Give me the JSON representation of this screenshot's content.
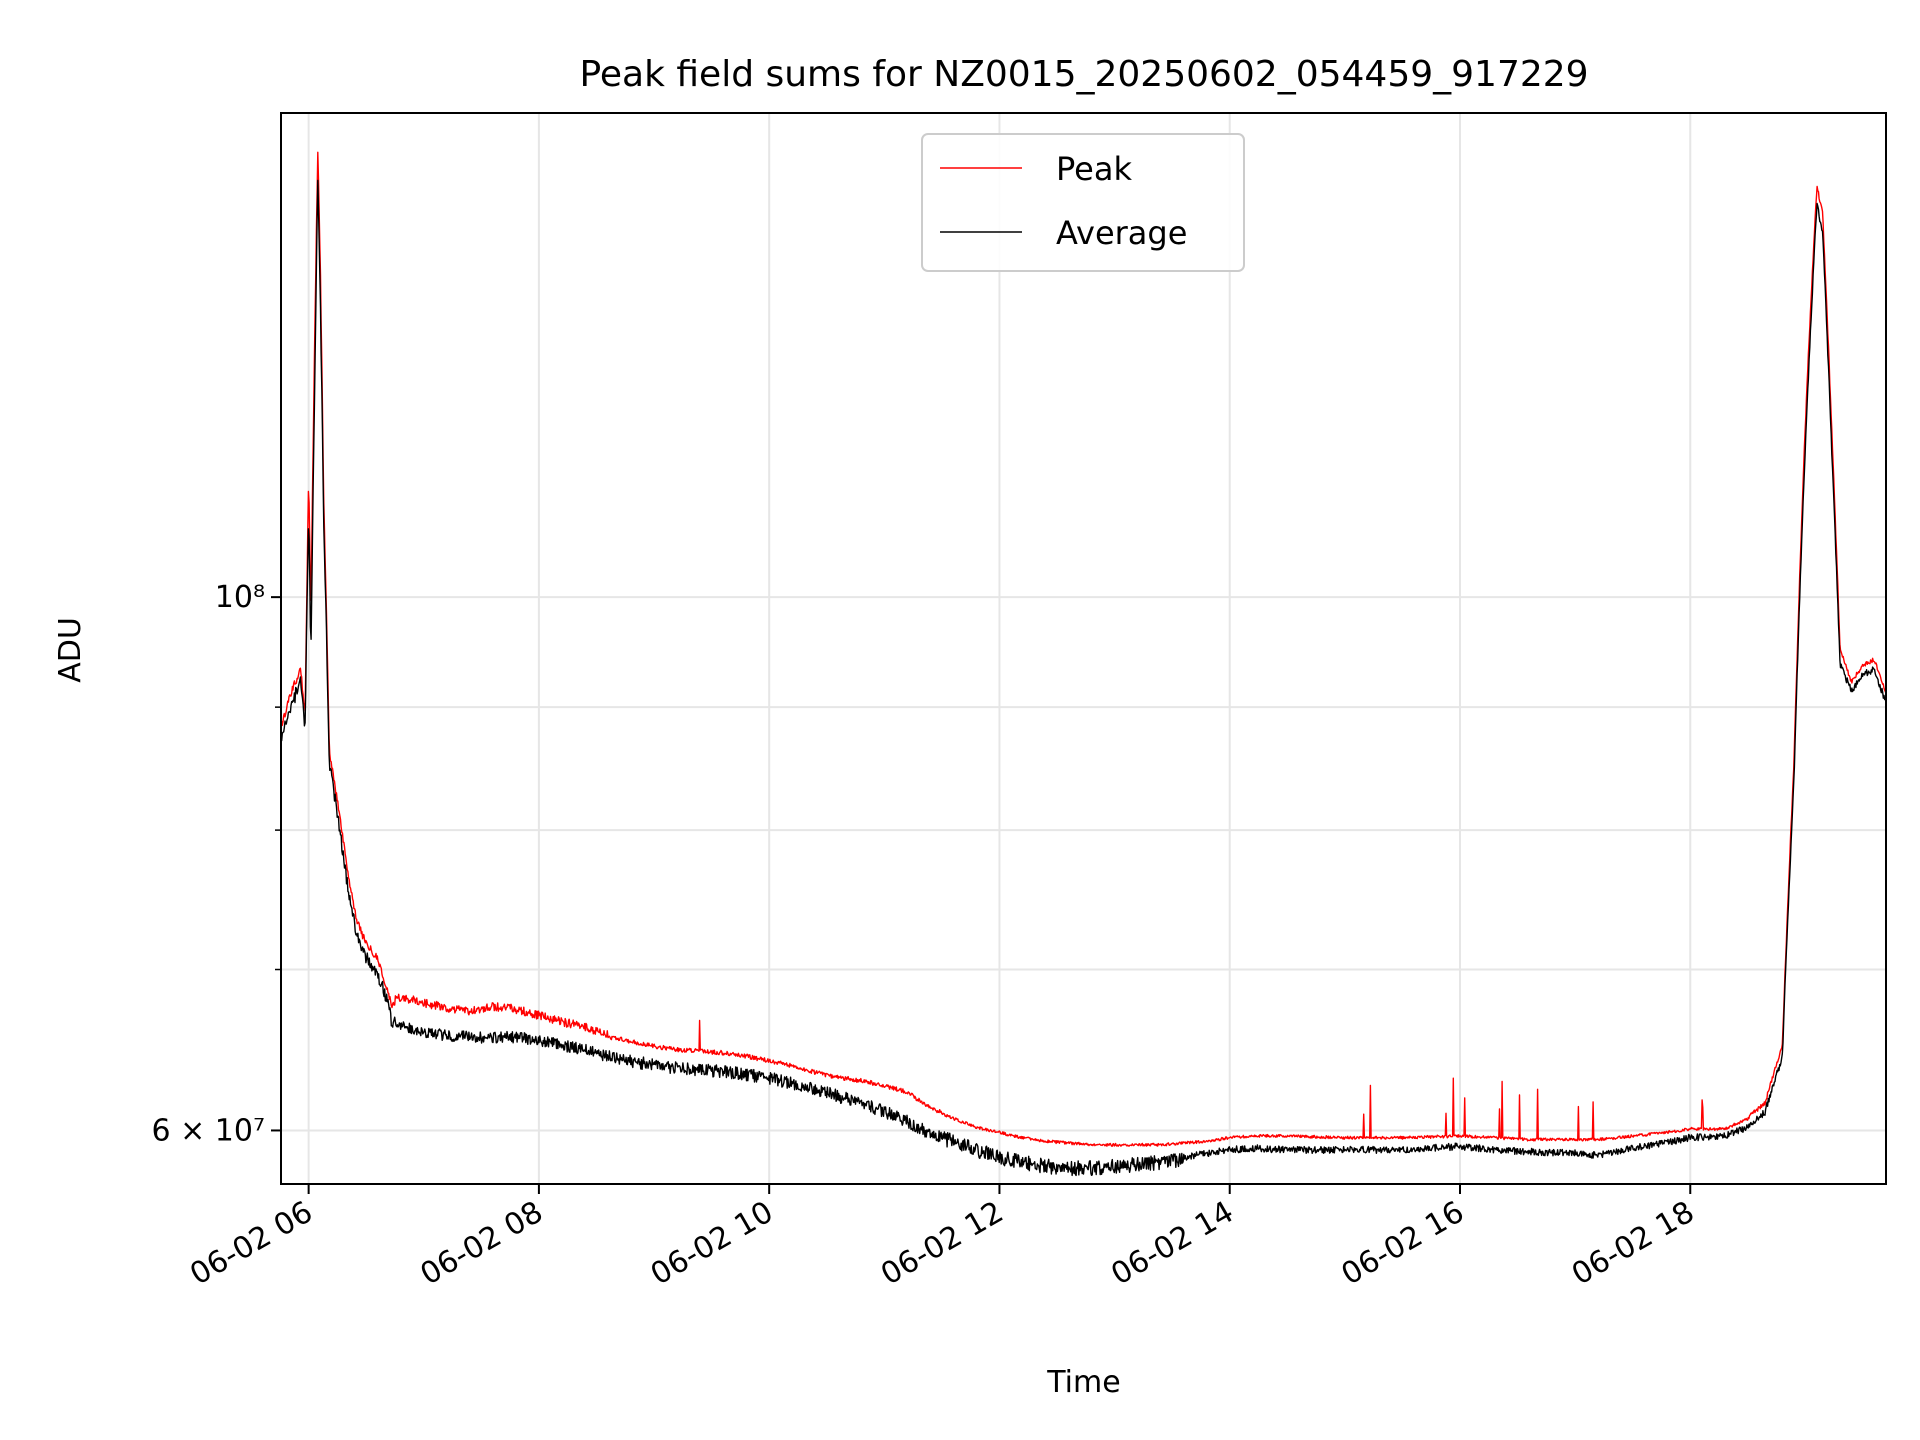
{
  "chart_data": {
    "type": "line",
    "title": "Peak field sums for NZ0015_20250602_054459_917229",
    "xlabel": "Time",
    "ylabel": "ADU",
    "x_type": "time (hours since 00:00 on 06-02)",
    "xlim": [
      5.76,
      19.7
    ],
    "ylim": [
      57000000,
      159000000
    ],
    "yscale": "log",
    "grid": true,
    "legend_position": "upper center",
    "x_ticks": [
      {
        "value": 6,
        "label": "06-02 06"
      },
      {
        "value": 8,
        "label": "06-02 08"
      },
      {
        "value": 10,
        "label": "06-02 10"
      },
      {
        "value": 12,
        "label": "06-02 12"
      },
      {
        "value": 14,
        "label": "06-02 14"
      },
      {
        "value": 16,
        "label": "06-02 16"
      },
      {
        "value": 18,
        "label": "06-02 18"
      }
    ],
    "y_major_ticks": [
      {
        "value": 60000000,
        "label": "6 × 10⁷"
      },
      {
        "value": 100000000,
        "label": "10⁸"
      }
    ],
    "y_minor_ticks": [
      70000000,
      80000000,
      90000000
    ],
    "series": [
      {
        "name": "Peak",
        "color": "#ff0000",
        "x": [
          5.76,
          5.85,
          5.93,
          5.97,
          6.0,
          6.02,
          6.05,
          6.08,
          6.1,
          6.13,
          6.18,
          6.25,
          6.35,
          6.42,
          6.5,
          6.6,
          6.7,
          6.72,
          6.76,
          6.85,
          7.0,
          7.2,
          7.4,
          7.6,
          7.8,
          8.0,
          8.2,
          8.4,
          8.6,
          8.8,
          9.0,
          9.2,
          9.4,
          9.6,
          9.8,
          10.0,
          10.2,
          10.4,
          10.6,
          10.8,
          11.0,
          11.2,
          11.4,
          11.6,
          11.8,
          12.0,
          12.2,
          12.4,
          12.6,
          12.8,
          13.0,
          13.2,
          13.4,
          13.6,
          13.8,
          14.0,
          14.2,
          14.5,
          15.0,
          15.5,
          16.0,
          16.3,
          16.6,
          17.0,
          17.2,
          17.5,
          17.8,
          18.0,
          18.3,
          18.5,
          18.65,
          18.8,
          18.9,
          19.0,
          19.1,
          19.15,
          19.22,
          19.3,
          19.4,
          19.5,
          19.6,
          19.7
        ],
        "y": [
          88000000,
          91000000,
          93000000,
          89000000,
          112000000,
          98000000,
          125000000,
          153000000,
          138000000,
          110000000,
          86000000,
          82000000,
          76000000,
          73000000,
          71500000,
          70500000,
          68000000,
          67200000,
          67800000,
          67800000,
          67500000,
          67200000,
          67000000,
          67300000,
          67100000,
          66700000,
          66300000,
          66000000,
          65500000,
          65200000,
          64900000,
          64700000,
          64600000,
          64500000,
          64300000,
          64000000,
          63700000,
          63300000,
          63000000,
          62800000,
          62500000,
          62100000,
          61200000,
          60600000,
          60100000,
          59800000,
          59500000,
          59300000,
          59200000,
          59100000,
          59100000,
          59100000,
          59100000,
          59200000,
          59300000,
          59500000,
          59600000,
          59600000,
          59500000,
          59500000,
          59600000,
          59500000,
          59400000,
          59400000,
          59400000,
          59600000,
          59800000,
          60000000,
          60000000,
          60600000,
          61500000,
          65000000,
          85000000,
          118000000,
          148000000,
          144000000,
          120000000,
          95000000,
          92000000,
          93500000,
          94000000,
          91000000
        ]
      },
      {
        "name": "Average",
        "color": "#000000",
        "x": [
          5.76,
          5.85,
          5.93,
          5.97,
          6.0,
          6.02,
          6.05,
          6.08,
          6.1,
          6.13,
          6.18,
          6.25,
          6.35,
          6.42,
          6.5,
          6.6,
          6.7,
          6.72,
          6.76,
          6.85,
          7.0,
          7.2,
          7.4,
          7.6,
          7.8,
          8.0,
          8.2,
          8.4,
          8.6,
          8.8,
          9.0,
          9.2,
          9.4,
          9.6,
          9.8,
          10.0,
          10.2,
          10.4,
          10.6,
          10.8,
          11.0,
          11.2,
          11.4,
          11.6,
          11.8,
          12.0,
          12.2,
          12.4,
          12.6,
          12.8,
          13.0,
          13.2,
          13.4,
          13.6,
          13.8,
          14.0,
          14.2,
          14.5,
          15.0,
          15.5,
          16.0,
          16.3,
          16.6,
          17.0,
          17.2,
          17.5,
          17.8,
          18.0,
          18.3,
          18.5,
          18.65,
          18.8,
          18.9,
          19.0,
          19.1,
          19.15,
          19.22,
          19.3,
          19.4,
          19.5,
          19.6,
          19.7
        ],
        "y": [
          87500000,
          90500000,
          92500000,
          88500000,
          109000000,
          95000000,
          120000000,
          150000000,
          135000000,
          108000000,
          85500000,
          81500000,
          75500000,
          72500000,
          71000000,
          70000000,
          67800000,
          66900000,
          66800000,
          66500000,
          66100000,
          65900000,
          65800000,
          65800000,
          65800000,
          65600000,
          65300000,
          65000000,
          64600000,
          64300000,
          64100000,
          63900000,
          63800000,
          63700000,
          63500000,
          63300000,
          63000000,
          62600000,
          62200000,
          61800000,
          61300000,
          60700000,
          60000000,
          59600000,
          59100000,
          58700000,
          58400000,
          58200000,
          58100000,
          58100000,
          58200000,
          58300000,
          58400000,
          58600000,
          58800000,
          59000000,
          59100000,
          59000000,
          59000000,
          59000000,
          59200000,
          59000000,
          58900000,
          58800000,
          58700000,
          59100000,
          59400000,
          59700000,
          59800000,
          60300000,
          61200000,
          64500000,
          84000000,
          116000000,
          146000000,
          142000000,
          118000000,
          94000000,
          91500000,
          93000000,
          93500000,
          90500000
        ]
      }
    ]
  }
}
